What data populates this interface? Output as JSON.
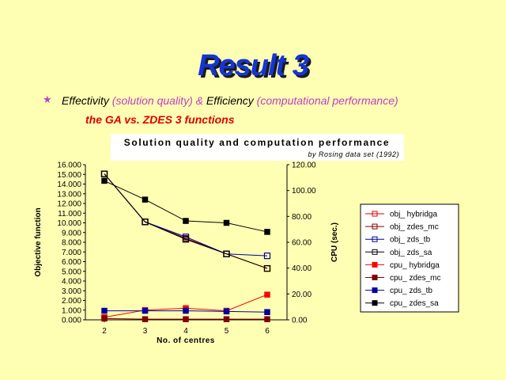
{
  "slide": {
    "title": "Result 3",
    "bullet_symbol": "★",
    "line1": {
      "part1": "Effectivity",
      "part2": " (solution quality) & ",
      "part3": "Efficiency",
      "part4": " (computational performance)"
    },
    "line2": "the GA  vs. ZDES 3 functions"
  },
  "colors": {
    "background": "#ffffb4",
    "title": "#1535d6",
    "emphasis_purple": "#c03cc0",
    "emphasis_red": "#e00000"
  },
  "chart_data": {
    "type": "line",
    "title": "Solution quality and computation performance",
    "subtitle": "by Rosing data set (1992)",
    "xlabel": "No. of centres",
    "ylabel": "Objective function",
    "y2label": "CPU (sec.)",
    "x": [
      2,
      3,
      4,
      5,
      6
    ],
    "ylim": [
      0,
      16
    ],
    "y2lim": [
      0,
      120
    ],
    "yticks": [
      "0.000",
      "1.000",
      "2.000",
      "3.000",
      "4.000",
      "5.000",
      "6.000",
      "7.000",
      "8.000",
      "9.000",
      "10.000",
      "11.000",
      "12.000",
      "13.000",
      "14.000",
      "15.000",
      "16.000"
    ],
    "y2ticks": [
      "0.00",
      "20.00",
      "40.00",
      "60.00",
      "80.00",
      "100.00",
      "120.00"
    ],
    "grid": false,
    "legend_position": "right",
    "series": [
      {
        "name": "obj_ hybridga",
        "axis": "left",
        "color": "#e00000",
        "filled": false,
        "values": [
          15.05,
          10.1,
          8.4,
          6.8,
          5.3
        ]
      },
      {
        "name": "obj_ zdes_mc",
        "axis": "left",
        "color": "#800000",
        "filled": false,
        "values": [
          15.05,
          10.1,
          8.4,
          6.8,
          5.3
        ]
      },
      {
        "name": "obj_ zds_tb",
        "axis": "left",
        "color": "#0000a0",
        "filled": false,
        "values": [
          15.05,
          10.1,
          8.55,
          6.8,
          6.6
        ]
      },
      {
        "name": "obj_ zds_sa",
        "axis": "left",
        "color": "#000000",
        "filled": false,
        "values": [
          15.05,
          10.1,
          8.3,
          6.8,
          5.3
        ]
      },
      {
        "name": "cpu_ hybridga",
        "axis": "right",
        "color": "#ff0000",
        "filled": true,
        "values": [
          2.0,
          7.5,
          9.0,
          7.0,
          19.5
        ]
      },
      {
        "name": "cpu_ zdes_mc",
        "axis": "right",
        "color": "#800000",
        "filled": true,
        "values": [
          1.0,
          0.5,
          0.5,
          0.5,
          0.5
        ]
      },
      {
        "name": "cpu_ zds_tb",
        "axis": "right",
        "color": "#0000a0",
        "filled": true,
        "values": [
          7.0,
          7.0,
          7.0,
          6.5,
          6.0
        ]
      },
      {
        "name": "cpu_ zdes_sa",
        "axis": "right",
        "color": "#000000",
        "filled": true,
        "values": [
          107.5,
          93.0,
          76.5,
          75.0,
          68.0
        ]
      }
    ]
  }
}
